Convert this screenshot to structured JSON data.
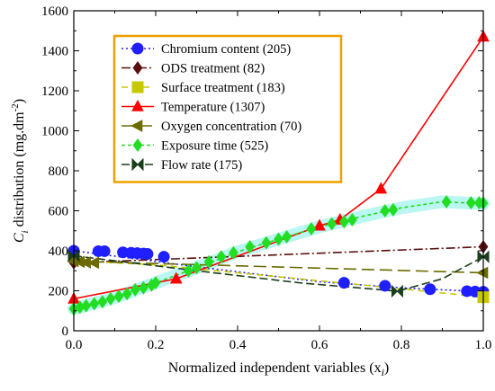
{
  "chart_data": {
    "type": "line",
    "title": "",
    "ylabel_main": "C",
    "ylabel_sub": "i",
    "ylabel_rest": " distribution (mg.dm",
    "ylabel_exp": "-2",
    "ylabel_close": ")",
    "xlabel_main": "Normalized independent variables (x",
    "xlabel_sub": "i",
    "xlabel_close": ")",
    "xlim": [
      0,
      1
    ],
    "ylim": [
      0,
      1600
    ],
    "xticks": [
      0.0,
      0.2,
      0.4,
      0.6,
      0.8,
      1.0
    ],
    "xtick_labels": [
      "0.0",
      "0.2",
      "0.4",
      "0.6",
      "0.8",
      "1.0"
    ],
    "yticks": [
      0,
      200,
      400,
      600,
      800,
      1000,
      1200,
      1400,
      1600
    ],
    "ytick_labels": [
      "0",
      "200",
      "400",
      "600",
      "800",
      "1000",
      "1200",
      "1400",
      "1600"
    ],
    "grid": false,
    "legend_position": "top-left",
    "series": [
      {
        "name": "Chromium content (205)",
        "color": "#1f1fff",
        "marker": "circle",
        "dash": "2,3",
        "points": [
          [
            0.0,
            400
          ],
          [
            0.06,
            398
          ],
          [
            0.075,
            398
          ],
          [
            0.12,
            392
          ],
          [
            0.14,
            390
          ],
          [
            0.155,
            388
          ],
          [
            0.17,
            386
          ],
          [
            0.18,
            384
          ],
          [
            0.22,
            370
          ],
          [
            0.66,
            240
          ],
          [
            0.76,
            225
          ],
          [
            0.87,
            208
          ],
          [
            0.96,
            198
          ],
          [
            0.98,
            196
          ],
          [
            1.0,
            195
          ]
        ],
        "line": [
          [
            0.0,
            400
          ],
          [
            0.3,
            320
          ],
          [
            0.6,
            245
          ],
          [
            0.8,
            215
          ],
          [
            1.0,
            195
          ]
        ]
      },
      {
        "name": "ODS treatment (82)",
        "color": "#5a0f0f",
        "marker": "diamond",
        "dash": "10,3,2,3",
        "points": [
          [
            0.0,
            340
          ],
          [
            1.0,
            420
          ]
        ],
        "line": [
          [
            0.0,
            340
          ],
          [
            1.0,
            420
          ]
        ]
      },
      {
        "name": "Surface treatment (183)",
        "color": "#c8c800",
        "marker": "square",
        "dash": "7,5",
        "points": [
          [
            1.0,
            168
          ]
        ],
        "line": [
          [
            0.0,
            350
          ],
          [
            0.2,
            330
          ],
          [
            0.4,
            290
          ],
          [
            0.6,
            250
          ],
          [
            0.8,
            210
          ],
          [
            1.0,
            168
          ]
        ]
      },
      {
        "name": "Temperature (1307)",
        "color": "#ff0000",
        "marker": "triangle",
        "dash": "",
        "points": [
          [
            0.0,
            160
          ],
          [
            0.25,
            260
          ],
          [
            0.6,
            525
          ],
          [
            0.65,
            555
          ],
          [
            0.75,
            710
          ],
          [
            1.0,
            1470
          ]
        ],
        "line": [
          [
            0.0,
            160
          ],
          [
            0.25,
            260
          ],
          [
            0.6,
            525
          ],
          [
            0.65,
            555
          ],
          [
            0.75,
            710
          ],
          [
            1.0,
            1470
          ]
        ]
      },
      {
        "name": "Oxygen concentration (70)",
        "color": "#6b6b00",
        "marker": "triangle-left",
        "dash": "14,6",
        "points": [
          [
            0.0,
            348
          ],
          [
            0.015,
            345
          ],
          [
            0.03,
            342
          ],
          [
            0.05,
            340
          ],
          [
            1.0,
            290
          ]
        ],
        "line": [
          [
            0.0,
            348
          ],
          [
            1.0,
            290
          ]
        ]
      },
      {
        "name": "Exposure time (525)",
        "color": "#22dd22",
        "marker": "diamond",
        "dash": "4,3",
        "points": [
          [
            0.0,
            110
          ],
          [
            0.015,
            118
          ],
          [
            0.03,
            125
          ],
          [
            0.05,
            135
          ],
          [
            0.07,
            145
          ],
          [
            0.09,
            160
          ],
          [
            0.11,
            172
          ],
          [
            0.13,
            185
          ],
          [
            0.15,
            205
          ],
          [
            0.17,
            215
          ],
          [
            0.19,
            228
          ],
          [
            0.2,
            240
          ],
          [
            0.28,
            300
          ],
          [
            0.3,
            315
          ],
          [
            0.33,
            345
          ],
          [
            0.36,
            370
          ],
          [
            0.39,
            390
          ],
          [
            0.43,
            420
          ],
          [
            0.47,
            440
          ],
          [
            0.5,
            458
          ],
          [
            0.52,
            470
          ],
          [
            0.58,
            510
          ],
          [
            0.63,
            535
          ],
          [
            0.66,
            545
          ],
          [
            0.68,
            555
          ],
          [
            0.76,
            600
          ],
          [
            0.78,
            605
          ],
          [
            0.91,
            645
          ],
          [
            0.97,
            640
          ],
          [
            0.99,
            640
          ],
          [
            1.0,
            638
          ]
        ],
        "line": [
          [
            0.0,
            110
          ],
          [
            0.1,
            165
          ],
          [
            0.2,
            240
          ],
          [
            0.3,
            315
          ],
          [
            0.4,
            395
          ],
          [
            0.5,
            458
          ],
          [
            0.6,
            520
          ],
          [
            0.7,
            570
          ],
          [
            0.8,
            615
          ],
          [
            0.9,
            645
          ],
          [
            1.0,
            635
          ]
        ]
      },
      {
        "name": "Flow rate (175)",
        "color": "#1a3d1a",
        "marker": "bowtie",
        "dash": "9,4",
        "points": [
          [
            0.0,
            375
          ],
          [
            0.79,
            198
          ],
          [
            1.0,
            370
          ]
        ],
        "line": [
          [
            0.0,
            375
          ],
          [
            0.3,
            300
          ],
          [
            0.55,
            240
          ],
          [
            0.79,
            198
          ],
          [
            0.9,
            260
          ],
          [
            1.0,
            370
          ]
        ]
      }
    ]
  }
}
